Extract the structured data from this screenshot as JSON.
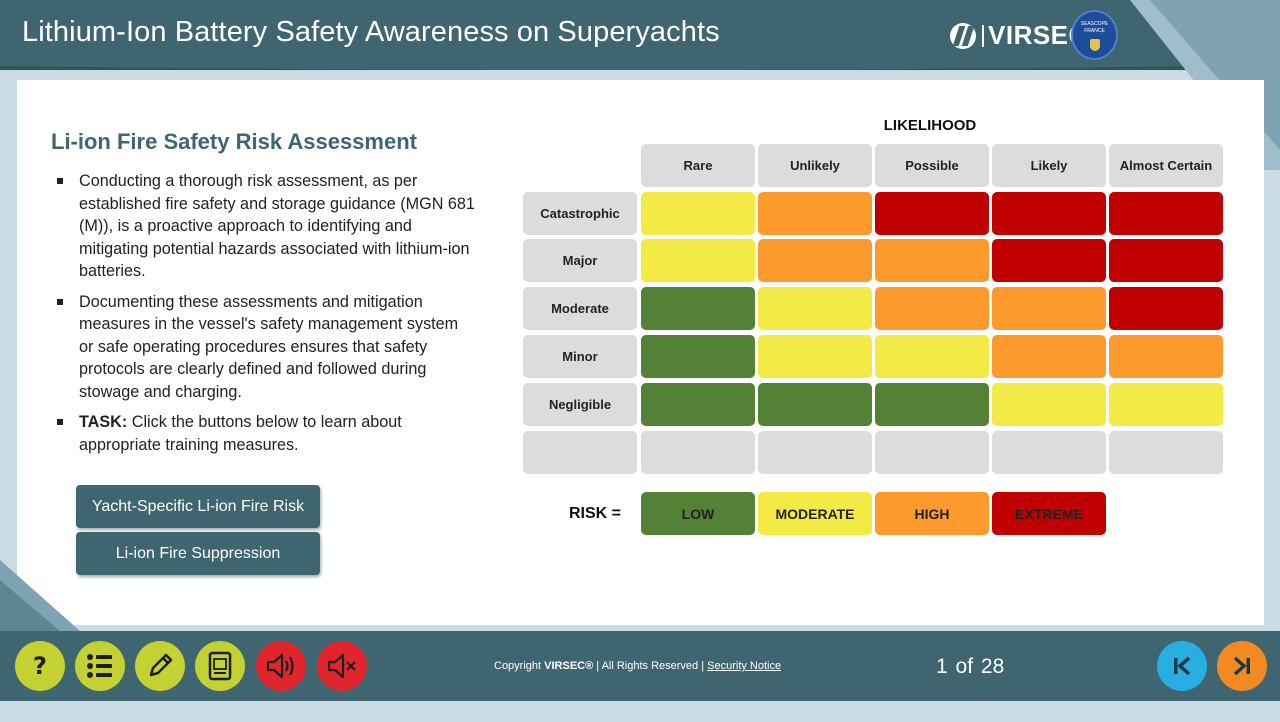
{
  "header": {
    "title": "Lithium-Ion Battery Safety Awareness on Superyachts",
    "brand": "VIRSEC",
    "partner_line1": "SEASCOPE",
    "partner_line2": "FRANCE"
  },
  "content": {
    "section_title": "Li-ion Fire Safety Risk Assessment",
    "bullet1": "Conducting a thorough risk assessment, as per established fire safety and storage guidance (MGN 681 (M)), is a proactive approach to identifying and mitigating potential hazards associated with lithium-ion batteries.",
    "bullet2": "Documenting these assessments and mitigation measures in the vessel's safety management system or safe operating procedures ensures that safety protocols are clearly defined and followed during stowage and charging.",
    "bullet3_label": "TASK:",
    "bullet3_text": " Click the buttons below to learn about appropriate training measures.",
    "button1": "Yacht-Specific Li-ion Fire Risk",
    "button2": "Li-ion Fire Suppression"
  },
  "matrix": {
    "title": "LIKELIHOOD",
    "likelihood": [
      "Rare",
      "Unlikely",
      "Possible",
      "Likely",
      "Almost Certain"
    ],
    "severity": [
      "Catastrophic",
      "Major",
      "Moderate",
      "Minor",
      "Negligible"
    ],
    "grid": [
      [
        "MODERATE",
        "HIGH",
        "EXTREME",
        "EXTREME",
        "EXTREME"
      ],
      [
        "MODERATE",
        "HIGH",
        "HIGH",
        "EXTREME",
        "EXTREME"
      ],
      [
        "LOW",
        "MODERATE",
        "HIGH",
        "HIGH",
        "EXTREME"
      ],
      [
        "LOW",
        "MODERATE",
        "MODERATE",
        "HIGH",
        "HIGH"
      ],
      [
        "LOW",
        "LOW",
        "LOW",
        "MODERATE",
        "MODERATE"
      ]
    ],
    "risk_label": "RISK =",
    "legend": [
      "LOW",
      "MODERATE",
      "HIGH",
      "EXTREME"
    ],
    "colors": {
      "LOW": "#538135",
      "MODERATE": "#f3ea45",
      "HIGH": "#fc9a2e",
      "EXTREME": "#c00000",
      "header": "#dcdcdc"
    }
  },
  "footer": {
    "copyright_prefix": "Copyright ",
    "copyright_brand": "VIRSEC®",
    "copyright_suffix": " | All Rights Reserved | ",
    "security_link": "Security Notice",
    "page_current": "1",
    "page_of": "of",
    "page_total": "28",
    "tools": [
      "help-icon",
      "menu-list-icon",
      "pencil-icon",
      "glossary-icon",
      "audio-on-icon",
      "audio-mute-icon"
    ],
    "nav": [
      "previous-icon",
      "next-icon"
    ]
  },
  "theme": {
    "primary": "#3f6670",
    "background": "#c9dbe4",
    "tool_yellow": "#c3d232",
    "tool_red": "#e0262c",
    "nav_prev": "#29aee4",
    "nav_next": "#f18a22"
  }
}
